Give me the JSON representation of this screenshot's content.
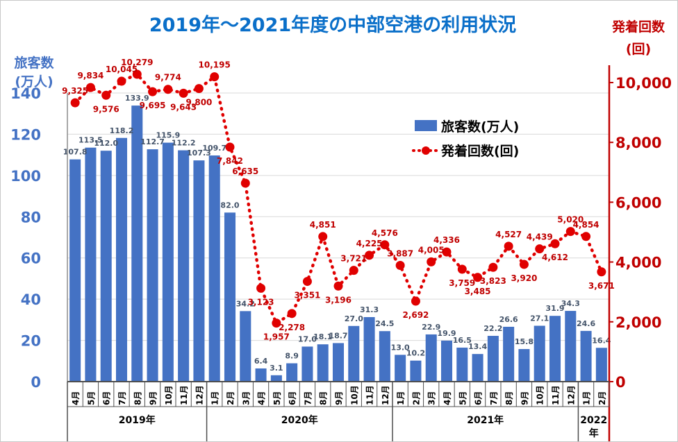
{
  "colors": {
    "title": "#0a6fc9",
    "passenger_series": "#4472c4",
    "passenger_axis": "#4472c4",
    "flight_series": "#e00000",
    "flight_axis": "#c00000",
    "bar_label": "#44546a",
    "flight_label": "#c00000"
  },
  "chart_data": {
    "type": "bar",
    "title": "2019年～2021年度の中部空港の利用状況",
    "ylabel_left": [
      "旅客数",
      "(万人)"
    ],
    "ylabel_right": [
      "発着回数",
      "(回)"
    ],
    "ylim_left": [
      0,
      140
    ],
    "ylim_right": [
      0,
      10000
    ],
    "yticks_left": [
      "0",
      "20",
      "40",
      "60",
      "80",
      "100",
      "120",
      "140"
    ],
    "yticks_right": [
      "0",
      "2,000",
      "4,000",
      "6,000",
      "8,000",
      "10,000"
    ],
    "categories": [
      "4月",
      "5月",
      "6月",
      "7月",
      "8月",
      "9月",
      "10月",
      "11月",
      "12月",
      "1月",
      "2月",
      "3月",
      "4月",
      "5月",
      "6月",
      "7月",
      "8月",
      "9月",
      "10月",
      "11月",
      "12月",
      "1月",
      "2月",
      "3月",
      "4月",
      "5月",
      "6月",
      "7月",
      "8月",
      "9月",
      "10月",
      "11月",
      "12月",
      "1月",
      "2月"
    ],
    "year_groups": [
      {
        "label": "2019年",
        "start": 0,
        "end": 8
      },
      {
        "label": "2020年",
        "start": 9,
        "end": 20
      },
      {
        "label": "2021年",
        "start": 21,
        "end": 32
      },
      {
        "label": "2022年",
        "start": 33,
        "end": 34
      }
    ],
    "legend_position": "top-right",
    "series": [
      {
        "name": "旅客数(万人)",
        "type": "bar",
        "axis": "left",
        "values": [
          107.8,
          113.5,
          112.0,
          118.2,
          133.9,
          112.7,
          115.9,
          112.2,
          107.3,
          109.7,
          82.0,
          34.2,
          6.4,
          3.1,
          8.9,
          17.0,
          18.1,
          18.7,
          27.0,
          31.3,
          24.5,
          13.0,
          10.2,
          22.9,
          19.9,
          16.5,
          13.4,
          22.2,
          26.6,
          15.8,
          27.1,
          31.9,
          34.3,
          24.6,
          16.4
        ],
        "labels": [
          "107.8",
          "113.5",
          "112.0",
          "118.2",
          "133.9",
          "112.7",
          "115.9",
          "112.2",
          "107.3",
          "109.7",
          "82.0",
          "34.2",
          "6.4",
          "3.1",
          "8.9",
          "17.0",
          "18.1",
          "18.7",
          "27.0",
          "31.3",
          "24.5",
          "13.0",
          "10.2",
          "22.9",
          "19.9",
          "16.5",
          "13.4",
          "22.2",
          "26.6",
          "15.8",
          "27.1",
          "31.9",
          "34.3",
          "24.6",
          "16.4"
        ]
      },
      {
        "name": "発着回数(回)",
        "type": "line",
        "axis": "right",
        "values": [
          9325,
          9834,
          9576,
          10045,
          10279,
          9695,
          9774,
          9643,
          9800,
          10195,
          7842,
          6635,
          3123,
          1957,
          2278,
          3351,
          4851,
          3196,
          3721,
          4225,
          4576,
          3887,
          2692,
          4005,
          4336,
          3759,
          3485,
          3823,
          4527,
          3920,
          4439,
          4612,
          5020,
          4854,
          3671
        ],
        "labels": [
          "9,325",
          "9,834",
          "9,576",
          "10,045",
          "10,279",
          "9,695",
          "9,774",
          "9,643",
          "9,800",
          "10,195",
          "7,842",
          "6,635",
          "3,123",
          "1,957",
          "2,278",
          "3,351",
          "4,851",
          "3,196",
          "3,721",
          "4,225",
          "4,576",
          "3,887",
          "2,692",
          "4,005",
          "4,336",
          "3,759",
          "3,485",
          "3,823",
          "4,527",
          "3,920",
          "4,439",
          "4,612",
          "5,020",
          "4,854",
          "3,671"
        ]
      }
    ]
  }
}
